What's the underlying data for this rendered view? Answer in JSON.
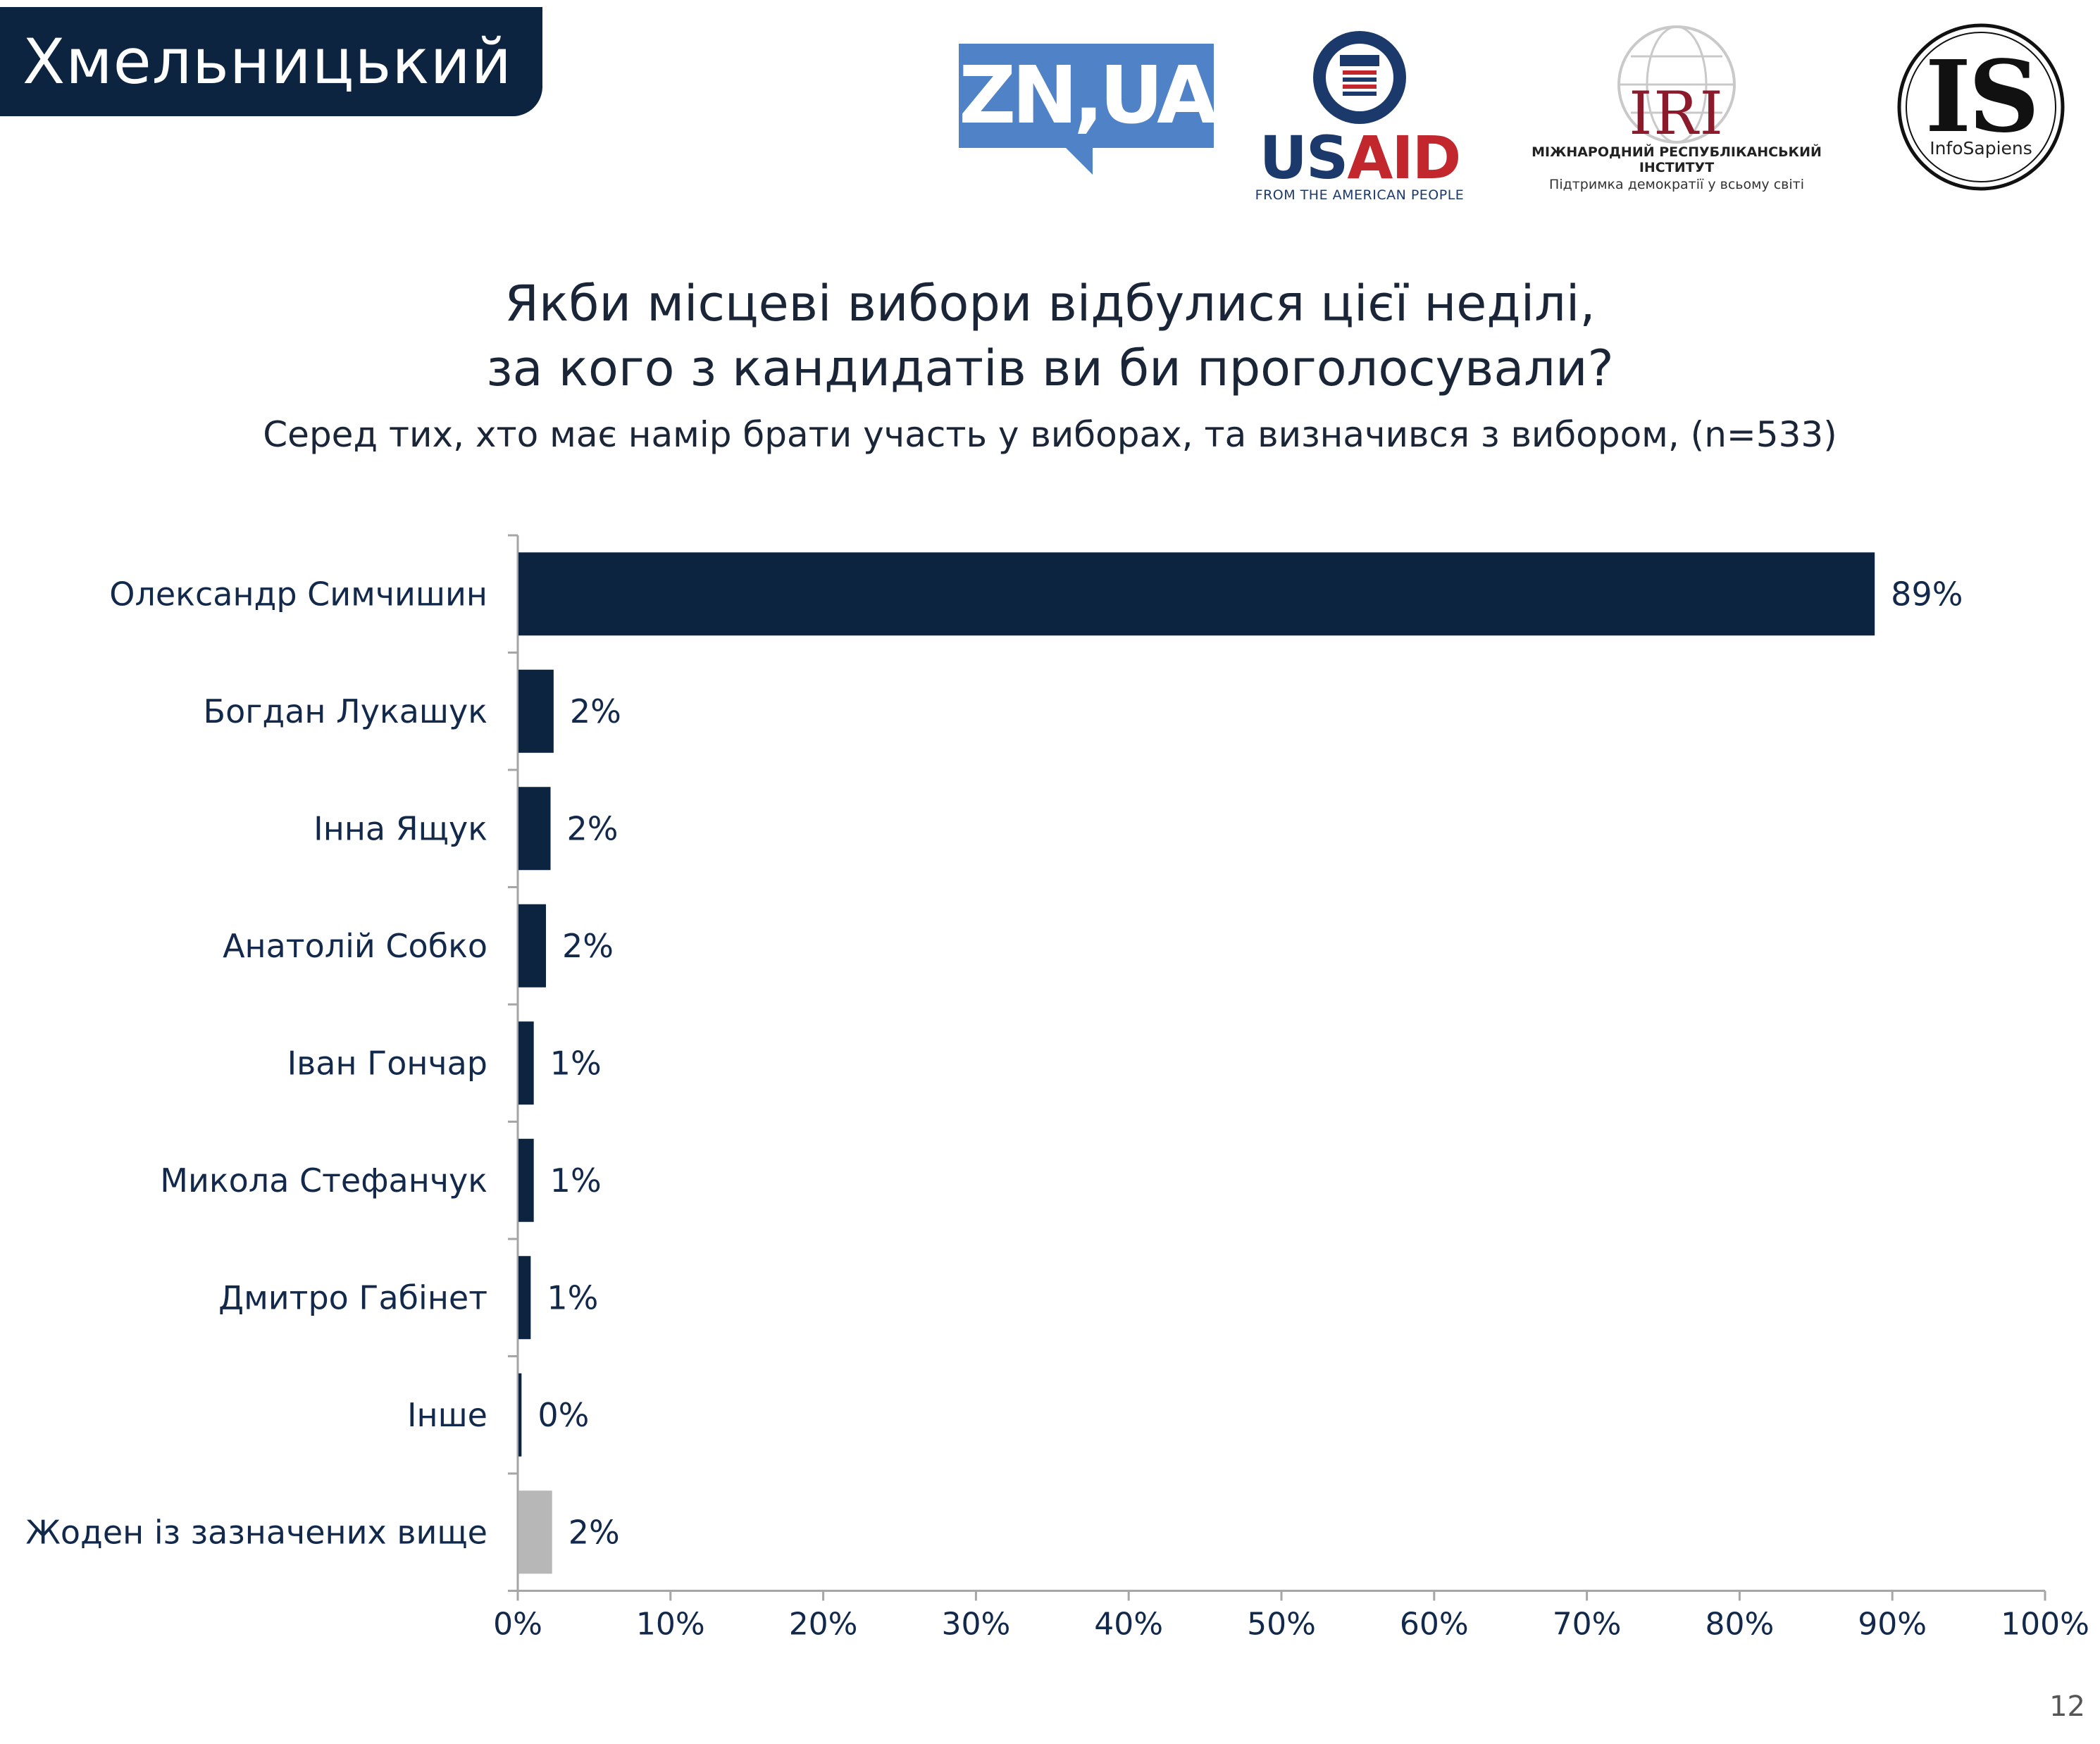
{
  "header": {
    "city": "Хмельницький"
  },
  "logos": {
    "zn": {
      "text": "ZN,UA"
    },
    "usaid": {
      "word_us": "US",
      "word_aid": "AID",
      "tagline": "FROM THE AMERICAN PEOPLE"
    },
    "iri": {
      "letters": "IRI",
      "name": "МІЖНАРОДНИЙ РЕСПУБЛІКАНСЬКИЙ ІНСТИТУТ",
      "slogan": "Підтримка демократії у всьому світі"
    },
    "infosapiens": {
      "letters": "IS",
      "name": "InfoSapiens"
    }
  },
  "chart_data": {
    "type": "bar",
    "orientation": "horizontal",
    "title": "Якби місцеві вибори відбулися цієї неділі,\nза кого з кандидатів ви би проголосували?",
    "subtitle": "Серед тих, хто має намір брати участь у виборах, та визначився з вибором, (n=533)",
    "categories": [
      "Олександр Симчишин",
      "Богдан Лукашук",
      "Інна Ящук",
      "Анатолій Собко",
      "Іван Гончар",
      "Микола Стефанчук",
      "Дмитро Габінет",
      "Інше",
      "Жоден із зазначених вище"
    ],
    "values": [
      88.8,
      2.3,
      2.1,
      1.8,
      1.0,
      1.0,
      0.8,
      0.2,
      2.2
    ],
    "value_labels": [
      "89%",
      "2%",
      "2%",
      "2%",
      "1%",
      "1%",
      "1%",
      "0%",
      "2%"
    ],
    "bar_colors": [
      "#0d2440",
      "#0d2440",
      "#0d2440",
      "#0d2440",
      "#0d2440",
      "#0d2440",
      "#0d2440",
      "#0d2440",
      "#b7b7b7"
    ],
    "xlim": [
      0,
      100
    ],
    "xticks": [
      0,
      10,
      20,
      30,
      40,
      50,
      60,
      70,
      80,
      90,
      100
    ],
    "xtick_labels": [
      "0%",
      "10%",
      "20%",
      "30%",
      "40%",
      "50%",
      "60%",
      "70%",
      "80%",
      "90%",
      "100%"
    ],
    "grid": false,
    "legend": "none"
  },
  "footer": {
    "page_number": "12"
  }
}
